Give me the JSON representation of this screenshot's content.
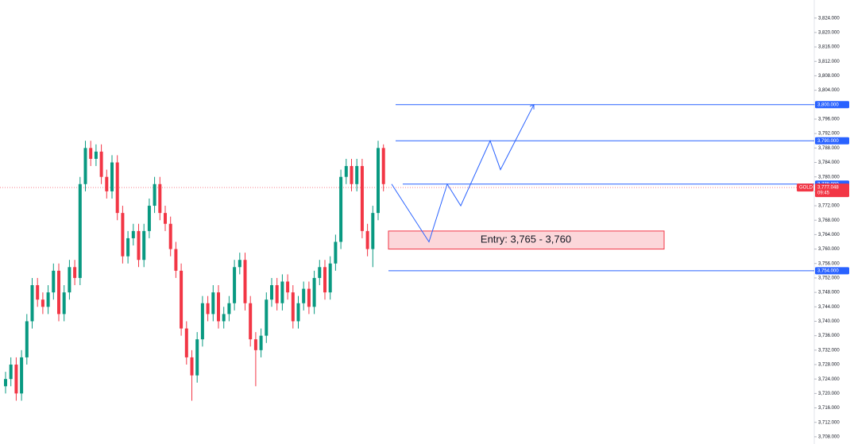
{
  "chart_data": {
    "type": "candlestick",
    "up_color": "#089981",
    "down_color": "#f23645",
    "line_color": "#2962ff",
    "open": [
      3722,
      3724,
      3728,
      3720,
      3730,
      3740,
      3750,
      3746,
      3744,
      3748,
      3754,
      3742,
      3748,
      3755,
      3752,
      3778,
      3788,
      3785,
      3787,
      3780,
      3776,
      3784,
      3770,
      3758,
      3763,
      3765,
      3757,
      3765,
      3772,
      3778,
      3770,
      3767,
      3760,
      3754,
      3738,
      3730,
      3725,
      3735,
      3745,
      3742,
      3748,
      3740,
      3742,
      3745,
      3755,
      3757,
      3745,
      3735,
      3732,
      3736,
      3746,
      3750,
      3745,
      3751,
      3748,
      3740,
      3745,
      3749,
      3744,
      3752,
      3755,
      3748,
      3756,
      3762,
      3780,
      3783,
      3778,
      3783,
      3765,
      3760,
      3770,
      3788
    ],
    "high": [
      3726,
      3730,
      3730,
      3732,
      3742,
      3752,
      3752,
      3748,
      3750,
      3756,
      3756,
      3750,
      3757,
      3757,
      3780,
      3790,
      3790,
      3789,
      3789,
      3782,
      3786,
      3786,
      3772,
      3765,
      3767,
      3767,
      3767,
      3774,
      3780,
      3780,
      3772,
      3769,
      3762,
      3756,
      3740,
      3732,
      3737,
      3747,
      3747,
      3750,
      3750,
      3744,
      3747,
      3757,
      3759,
      3759,
      3747,
      3737,
      3738,
      3748,
      3752,
      3752,
      3753,
      3753,
      3750,
      3747,
      3751,
      3751,
      3754,
      3757,
      3757,
      3758,
      3764,
      3782,
      3785,
      3785,
      3785,
      3785,
      3767,
      3772,
      3790,
      3789
    ],
    "low": [
      3720,
      3722,
      3718,
      3718,
      3728,
      3738,
      3744,
      3742,
      3742,
      3746,
      3740,
      3740,
      3746,
      3750,
      3750,
      3776,
      3783,
      3783,
      3778,
      3774,
      3774,
      3768,
      3756,
      3756,
      3761,
      3755,
      3755,
      3763,
      3770,
      3768,
      3765,
      3758,
      3752,
      3736,
      3728,
      3718,
      3723,
      3733,
      3740,
      3740,
      3738,
      3738,
      3740,
      3743,
      3753,
      3743,
      3733,
      3722,
      3730,
      3734,
      3744,
      3743,
      3743,
      3746,
      3738,
      3738,
      3743,
      3742,
      3742,
      3750,
      3746,
      3746,
      3754,
      3760,
      3778,
      3776,
      3776,
      3763,
      3758,
      3755,
      3768,
      3776
    ],
    "close": [
      3724,
      3728,
      3720,
      3730,
      3740,
      3750,
      3746,
      3744,
      3748,
      3754,
      3742,
      3748,
      3755,
      3752,
      3778,
      3788,
      3785,
      3787,
      3780,
      3776,
      3784,
      3770,
      3758,
      3763,
      3765,
      3757,
      3765,
      3772,
      3778,
      3770,
      3767,
      3760,
      3754,
      3738,
      3730,
      3725,
      3735,
      3745,
      3742,
      3748,
      3740,
      3742,
      3745,
      3755,
      3757,
      3745,
      3735,
      3732,
      3736,
      3746,
      3750,
      3745,
      3751,
      3748,
      3740,
      3745,
      3749,
      3744,
      3752,
      3755,
      3748,
      3756,
      3762,
      3780,
      3783,
      3778,
      3783,
      3765,
      3760,
      3770,
      3788,
      3778
    ],
    "ylim": [
      3706,
      3829
    ],
    "yticks": [
      {
        "value": 3708,
        "label": "3,708.000"
      },
      {
        "value": 3712,
        "label": "3,712.000"
      },
      {
        "value": 3716,
        "label": "3,716.000"
      },
      {
        "value": 3720,
        "label": "3,720.000"
      },
      {
        "value": 3724,
        "label": "3,724.000"
      },
      {
        "value": 3728,
        "label": "3,728.000"
      },
      {
        "value": 3732,
        "label": "3,732.000"
      },
      {
        "value": 3736,
        "label": "3,736.000"
      },
      {
        "value": 3740,
        "label": "3,740.000"
      },
      {
        "value": 3744,
        "label": "3,744.000"
      },
      {
        "value": 3748,
        "label": "3,748.000"
      },
      {
        "value": 3752,
        "label": "3,752.000"
      },
      {
        "value": 3756,
        "label": "3,756.000"
      },
      {
        "value": 3760,
        "label": "3,760.000"
      },
      {
        "value": 3764,
        "label": "3,764.000"
      },
      {
        "value": 3768,
        "label": "3,768.000"
      },
      {
        "value": 3772,
        "label": "3,772.000"
      },
      {
        "value": 3776,
        "label": "3,776.000"
      },
      {
        "value": 3780,
        "label": "3,780.000"
      },
      {
        "value": 3784,
        "label": "3,784.000"
      },
      {
        "value": 3788,
        "label": "3,788.000"
      },
      {
        "value": 3792,
        "label": "3,792.000"
      },
      {
        "value": 3796,
        "label": "3,796.000"
      },
      {
        "value": 3800,
        "label": "3,800.000"
      },
      {
        "value": 3804,
        "label": "3,804.000"
      },
      {
        "value": 3808,
        "label": "3,808.000"
      },
      {
        "value": 3812,
        "label": "3,812.000"
      },
      {
        "value": 3816,
        "label": "3,816.000"
      },
      {
        "value": 3820,
        "label": "3,820.000"
      },
      {
        "value": 3824,
        "label": "3,824.000"
      }
    ],
    "levels": [
      {
        "value": 3800,
        "label": "3,800.000"
      },
      {
        "value": 3790,
        "label": "3,790.000"
      },
      {
        "value": 3778,
        "label": "3,778.000"
      },
      {
        "value": 3754,
        "label": "3,754.000"
      }
    ],
    "current": {
      "symbol": "GOLD",
      "value": 3777.048,
      "label": "3,777.048",
      "countdown": "09:45"
    },
    "entry": {
      "label": "Entry: 3,765 - 3,760",
      "high": 3765,
      "low": 3760
    },
    "projection": [
      3778,
      3762,
      3778,
      3772,
      3790,
      3782,
      3800
    ]
  }
}
